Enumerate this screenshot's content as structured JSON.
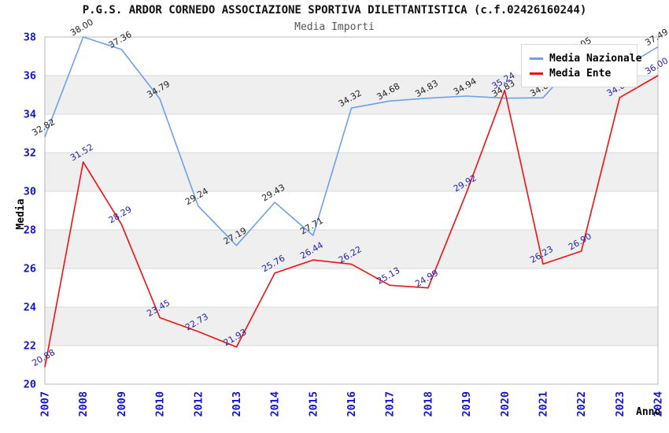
{
  "header": {
    "title": "P.G.S. ARDOR CORNEDO ASSOCIAZIONE SPORTIVA DILETTANTISTICA (c.f.02426160244)",
    "subtitle": "Media Importi"
  },
  "legend": {
    "position": "top-right",
    "items": [
      {
        "label": "Media Nazionale",
        "color": "#6CA0E8"
      },
      {
        "label": "Media Ente",
        "color": "#EE1111"
      }
    ]
  },
  "colors": {
    "tick_label": "#1414CC",
    "axis_title": "#000000",
    "band_gray": "#EFEFEF",
    "gridline": "#DADADA",
    "plot_border": "#B8B8B8",
    "nazionale_line": "#6CA0E8",
    "ente_line": "#EE1111",
    "nazionale_point_label": "#222222",
    "ente_point_label": "#2222AA"
  },
  "chart_data": {
    "type": "line",
    "title": "P.G.S. ARDOR CORNEDO ASSOCIAZIONE SPORTIVA DILETTANTISTICA (c.f.02426160244)",
    "subtitle": "Media Importi",
    "xlabel": "Anno",
    "ylabel": "Media",
    "ylim": [
      20,
      38
    ],
    "ytick_step": 2,
    "y_tick_labels": [
      "20",
      "22",
      "24",
      "26",
      "28",
      "30",
      "32",
      "34",
      "36",
      "38"
    ],
    "categories": [
      "2007",
      "2008",
      "2009",
      "2010",
      "2012",
      "2013",
      "2014",
      "2015",
      "2016",
      "2017",
      "2018",
      "2019",
      "2020",
      "2021",
      "2022",
      "2023",
      "2024"
    ],
    "grid": "alternating-horizontal-bands",
    "legend_position": "top-right",
    "series": [
      {
        "name": "Media Nazionale",
        "color": "#6CA0E8",
        "label_color": "#222222",
        "values": [
          32.82,
          38.0,
          37.36,
          34.79,
          29.24,
          27.19,
          29.43,
          27.71,
          34.32,
          34.68,
          34.83,
          34.94,
          34.83,
          34.85,
          37.05,
          36.3,
          37.49
        ],
        "point_labels": [
          "32.82",
          "38.00",
          "37.36",
          "34.79",
          "29.24",
          "27.19",
          "29.43",
          "27.71",
          "34.32",
          "34.68",
          "34.83",
          "34.94",
          "34.83",
          "34.85",
          "37.05",
          null,
          "37.49"
        ]
      },
      {
        "name": "Media Ente",
        "color": "#EE1111",
        "label_color": "#2222AA",
        "values": [
          20.88,
          31.52,
          28.29,
          23.45,
          22.73,
          21.93,
          25.76,
          26.44,
          26.22,
          25.13,
          24.99,
          29.92,
          35.24,
          26.23,
          26.9,
          34.86,
          36.0
        ],
        "point_labels": [
          "20.88",
          "31.52",
          "28.29",
          "23.45",
          "22.73",
          "21.93",
          "25.76",
          "26.44",
          "26.22",
          "25.13",
          "24.99",
          "29.92",
          "35.24",
          "26.23",
          "26.90",
          "34.86",
          "36.00"
        ]
      }
    ]
  }
}
